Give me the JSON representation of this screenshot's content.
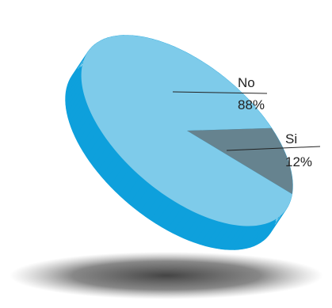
{
  "chart_data": {
    "type": "pie",
    "style": "3d-tilted",
    "slices": [
      {
        "label": "No",
        "value": 88,
        "value_label": "88%",
        "color": "#7ECBEA"
      },
      {
        "label": "Si",
        "value": 12,
        "value_label": "12%",
        "color": "#66838F"
      }
    ],
    "side_color": "#0EA0DC",
    "shadow_color": "#6E6E6E",
    "legend": "none",
    "grid": false
  }
}
